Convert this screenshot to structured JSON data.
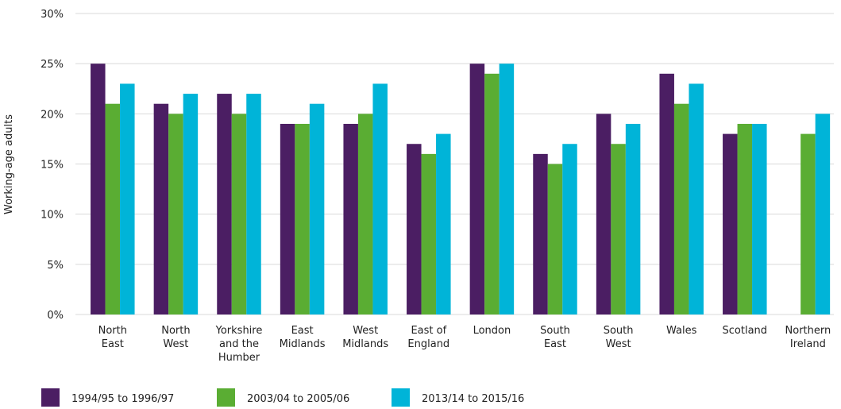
{
  "chart_data": {
    "type": "bar",
    "ylabel": "Working-age adults",
    "categories": [
      "North\nEast",
      "North\nWest",
      "Yorkshire\nand the\nHumber",
      "East\nMidlands",
      "West\nMidlands",
      "East of\nEngland",
      "London",
      "South\nEast",
      "South\nWest",
      "Wales",
      "Scotland",
      "Northern\nIreland"
    ],
    "series": [
      {
        "name": "1994/95 to 1996/97",
        "color": "#4b1e63",
        "values": [
          25,
          21,
          22,
          19,
          19,
          17,
          25,
          16,
          20,
          24,
          18,
          null
        ]
      },
      {
        "name": "2003/04 to 2005/06",
        "color": "#5aad33",
        "values": [
          21,
          20,
          20,
          19,
          20,
          16,
          24,
          15,
          17,
          21,
          19,
          18
        ]
      },
      {
        "name": "2013/14 to 2015/16",
        "color": "#00b4d8",
        "values": [
          23,
          22,
          22,
          21,
          23,
          18,
          25,
          17,
          19,
          23,
          19,
          20
        ]
      }
    ],
    "ylim": [
      0,
      30
    ],
    "yticks": [
      {
        "value": 0,
        "label": "0%"
      },
      {
        "value": 5,
        "label": "5%"
      },
      {
        "value": 10,
        "label": "10%"
      },
      {
        "value": 15,
        "label": "15%"
      },
      {
        "value": 20,
        "label": "20%"
      },
      {
        "value": 25,
        "label": "25%"
      },
      {
        "value": 30,
        "label": "30%"
      }
    ],
    "grid": true,
    "legend": "bottom"
  }
}
